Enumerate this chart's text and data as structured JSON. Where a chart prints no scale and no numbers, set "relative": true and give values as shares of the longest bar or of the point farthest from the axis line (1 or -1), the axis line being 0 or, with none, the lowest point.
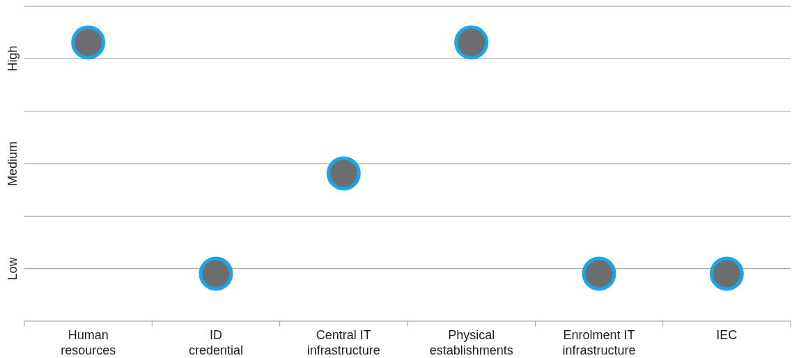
{
  "chart_data": {
    "type": "scatter",
    "relative": true,
    "categories": [
      "Human resources",
      "ID credential",
      "Central IT infrastructure",
      "Physical establishments",
      "Enrolment IT infrastructure",
      "IEC"
    ],
    "series": [
      {
        "color": "#6d6e71",
        "values": [
          1,
          0.17,
          0.53,
          1,
          0.17,
          0.17
        ]
      }
    ],
    "annotations": [
      "Low",
      "Medium",
      "High"
    ],
    "grid": "y",
    "marker": "circle"
  }
}
